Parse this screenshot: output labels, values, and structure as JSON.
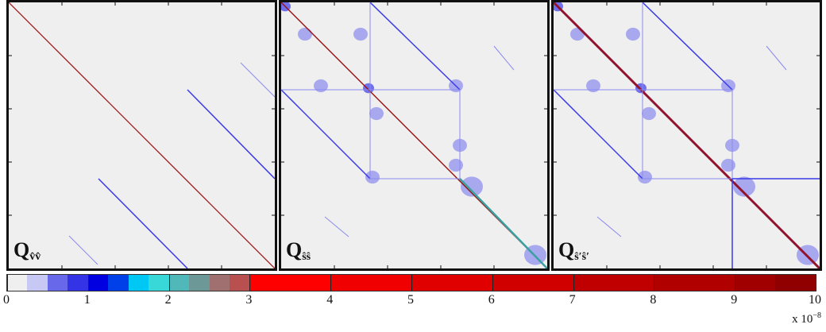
{
  "chart_data": {
    "type": "heatmap",
    "panels": [
      {
        "label_main": "Q",
        "label_sub": "v̂v̂"
      },
      {
        "label_main": "Q",
        "label_sub": "ŝŝ"
      },
      {
        "label_main": "Q",
        "label_sub": "ŝ′ŝ′"
      }
    ],
    "colorbar": {
      "range": [
        0,
        10
      ],
      "ticks": [
        "0",
        "1",
        "2",
        "3",
        "4",
        "5",
        "6",
        "7",
        "8",
        "9",
        "10"
      ],
      "exponent_base": "x 10",
      "exponent_power": "−8",
      "colors": [
        "#efefef",
        "#c8c8f5",
        "#9a9af0",
        "#6868ea",
        "#3434e6",
        "#0000e0",
        "#0040e8",
        "#0088f0",
        "#00c8f4",
        "#38d8d8",
        "#50b8b8",
        "#6c9898",
        "#8a8888",
        "#a07070",
        "#b85050",
        "#d03030",
        "#e81818",
        "#ff0000",
        "#f00000",
        "#e00000",
        "#d00000",
        "#c00000",
        "#b00000",
        "#a00000",
        "#900000",
        "#800000"
      ],
      "color_stops": [
        0,
        0.2,
        0.4,
        0.6,
        0.8,
        1.0,
        1.2,
        1.4,
        1.6,
        1.8,
        2.0,
        2.2,
        2.4,
        2.6,
        2.8,
        3.0,
        3.0,
        3.0,
        4.0,
        5.0,
        6.0,
        7.0,
        8.0,
        9.0,
        9.5,
        10.0
      ]
    }
  }
}
